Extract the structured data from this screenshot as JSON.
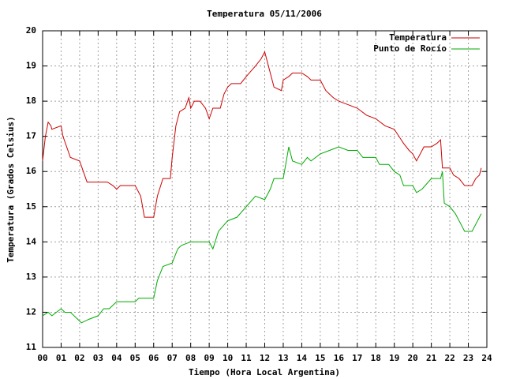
{
  "chart_data": {
    "type": "line",
    "title": "Temperatura 05/11/2006",
    "x_label": "Tiempo (Hora Local Argentina)",
    "y_label": "Temperatura (Grados Celsius)",
    "xlim": [
      0,
      24
    ],
    "ylim": [
      11,
      20
    ],
    "xticks": [
      {
        "value": 0,
        "label": "00"
      },
      {
        "value": 1,
        "label": "01"
      },
      {
        "value": 2,
        "label": "02"
      },
      {
        "value": 3,
        "label": "03"
      },
      {
        "value": 4,
        "label": "04"
      },
      {
        "value": 5,
        "label": "05"
      },
      {
        "value": 6,
        "label": "06"
      },
      {
        "value": 7,
        "label": "07"
      },
      {
        "value": 8,
        "label": "08"
      },
      {
        "value": 9,
        "label": "09"
      },
      10,
      11,
      12,
      13,
      14,
      15,
      16,
      17,
      18,
      19,
      20,
      21,
      22,
      23,
      24
    ],
    "yticks": [
      11,
      12,
      13,
      14,
      15,
      16,
      17,
      18,
      19,
      20
    ],
    "grid": true,
    "legend": "top-right",
    "series": [
      {
        "name": "Temperatura",
        "color": "#cc0000",
        "x": [
          0,
          0.15,
          0.3,
          0.45,
          0.5,
          1.0,
          1.1,
          1.5,
          2.0,
          2.4,
          3,
          3.5,
          3.8,
          4.0,
          4.2,
          5,
          5.3,
          5.5,
          6,
          6.2,
          6.5,
          6.9,
          7.0,
          7.2,
          7.4,
          7.7,
          7.9,
          8.0,
          8.2,
          8.5,
          8.8,
          9.0,
          9.2,
          9.6,
          9.8,
          10,
          10.2,
          10.7,
          11,
          11.5,
          11.8,
          12.0,
          12.3,
          12.5,
          12.9,
          13.0,
          13.3,
          13.5,
          14,
          14.3,
          14.5,
          15,
          15.3,
          15.7,
          16,
          16.5,
          17,
          17.5,
          18,
          18.5,
          19,
          19.5,
          19.8,
          20,
          20.2,
          20.6,
          21,
          21.3,
          21.5,
          21.6,
          22,
          22.2,
          22.5,
          22.8,
          23.2,
          23.4,
          23.6,
          23.7
        ],
        "values": [
          16.3,
          17.0,
          17.4,
          17.3,
          17.2,
          17.3,
          17.0,
          16.4,
          16.3,
          15.7,
          15.7,
          15.7,
          15.6,
          15.5,
          15.6,
          15.6,
          15.3,
          14.7,
          14.7,
          15.3,
          15.8,
          15.8,
          16.4,
          17.3,
          17.7,
          17.8,
          18.1,
          17.8,
          18.0,
          18.0,
          17.8,
          17.5,
          17.8,
          17.8,
          18.2,
          18.4,
          18.5,
          18.5,
          18.7,
          19.0,
          19.2,
          19.4,
          18.8,
          18.4,
          18.3,
          18.6,
          18.7,
          18.8,
          18.8,
          18.7,
          18.6,
          18.6,
          18.3,
          18.1,
          18.0,
          17.9,
          17.8,
          17.6,
          17.5,
          17.3,
          17.2,
          16.8,
          16.6,
          16.5,
          16.3,
          16.7,
          16.7,
          16.8,
          16.9,
          16.1,
          16.1,
          15.9,
          15.8,
          15.6,
          15.6,
          15.8,
          15.9,
          16.1
        ]
      },
      {
        "name": "Punto de Rocío",
        "color": "#00aa00",
        "x": [
          0,
          0.3,
          0.5,
          1,
          1.2,
          1.5,
          1.9,
          2.1,
          2.5,
          3,
          3.3,
          3.6,
          4,
          4.5,
          5,
          5.2,
          5.5,
          6,
          6.2,
          6.5,
          7,
          7.3,
          7.5,
          8,
          8.5,
          9,
          9.2,
          9.5,
          10,
          10.5,
          11,
          11.5,
          12,
          12.3,
          12.5,
          13,
          13.3,
          13.5,
          14,
          14.3,
          14.5,
          15,
          15.5,
          16,
          16.5,
          17,
          17.3,
          18,
          18.2,
          18.7,
          19,
          19.3,
          19.5,
          20,
          20.2,
          20.5,
          21,
          21.5,
          21.6,
          21.7,
          22,
          22.3,
          22.6,
          22.8,
          23.2,
          23.4,
          23.6,
          23.7
        ],
        "values": [
          11.9,
          12.0,
          11.9,
          12.1,
          12.0,
          12.0,
          11.8,
          11.7,
          11.8,
          11.9,
          12.1,
          12.1,
          12.3,
          12.3,
          12.3,
          12.4,
          12.4,
          12.4,
          12.9,
          13.3,
          13.4,
          13.8,
          13.9,
          14.0,
          14.0,
          14.0,
          13.8,
          14.3,
          14.6,
          14.7,
          15.0,
          15.3,
          15.2,
          15.5,
          15.8,
          15.8,
          16.7,
          16.3,
          16.2,
          16.4,
          16.3,
          16.5,
          16.6,
          16.7,
          16.6,
          16.6,
          16.4,
          16.4,
          16.2,
          16.2,
          16.0,
          15.9,
          15.6,
          15.6,
          15.4,
          15.5,
          15.8,
          15.8,
          16.0,
          15.1,
          15.0,
          14.8,
          14.5,
          14.3,
          14.3,
          14.5,
          14.7,
          14.8
        ]
      }
    ]
  }
}
